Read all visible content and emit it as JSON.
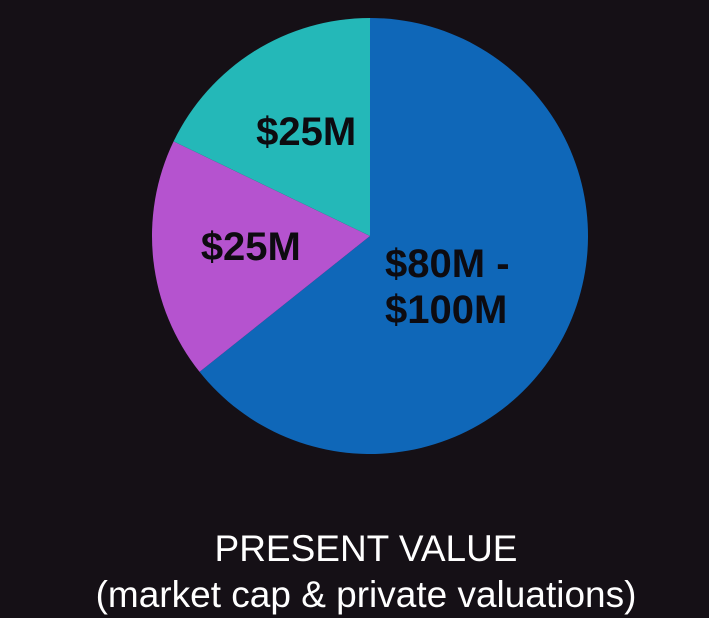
{
  "chart_data": {
    "type": "pie",
    "title": "PRESENT VALUE",
    "subtitle": "(market cap & private valuations)",
    "categories": [
      null,
      null,
      null
    ],
    "values": [
      90,
      25,
      25
    ],
    "value_labels": [
      "$80M - $100M",
      "$25M",
      "$25M"
    ],
    "colors": [
      "#0f67b8",
      "#b553cf",
      "#24b8b8"
    ]
  }
}
